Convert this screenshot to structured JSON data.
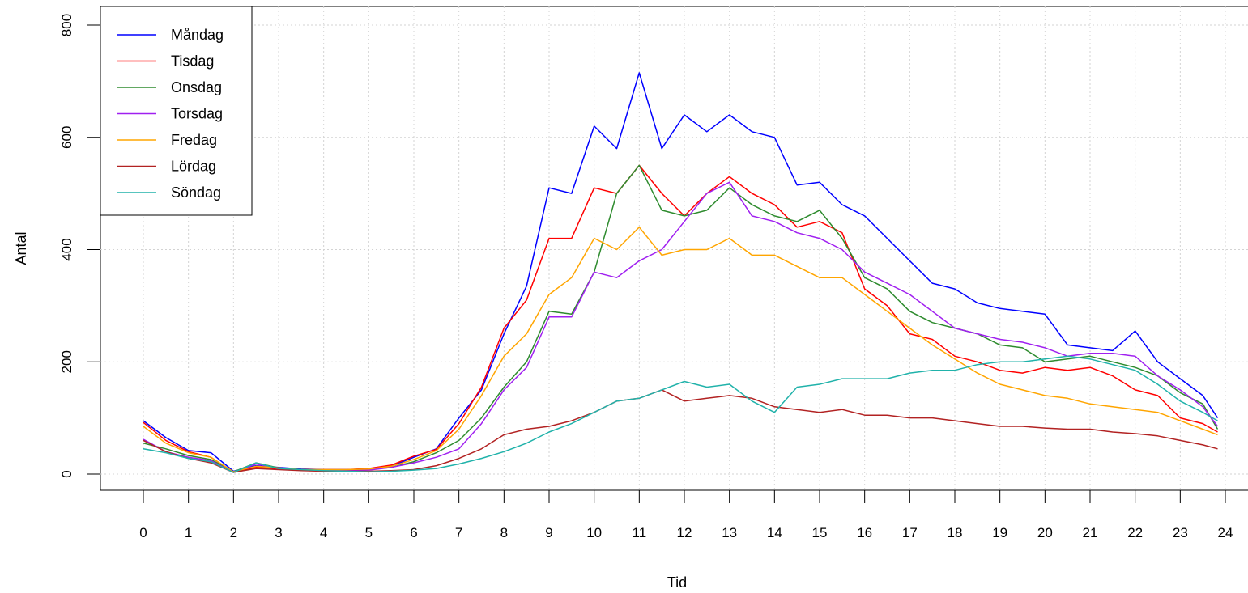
{
  "chart_data": {
    "type": "line",
    "xlabel": "Tid",
    "ylabel": "Antal",
    "xlim": [
      0,
      24
    ],
    "ylim": [
      0,
      800
    ],
    "x_ticks": [
      "0",
      "1",
      "2",
      "3",
      "4",
      "5",
      "6",
      "7",
      "8",
      "9",
      "10",
      "11",
      "12",
      "13",
      "14",
      "15",
      "16",
      "17",
      "18",
      "19",
      "20",
      "21",
      "22",
      "23",
      "24"
    ],
    "y_ticks": [
      "0",
      "200",
      "400",
      "600",
      "800"
    ],
    "grid": true,
    "legend_position": "top-left",
    "x": [
      0,
      0.5,
      1,
      1.5,
      2,
      2.5,
      3,
      3.5,
      4,
      4.5,
      5,
      5.5,
      6,
      6.5,
      7,
      7.5,
      8,
      8.5,
      9,
      9.5,
      10,
      10.5,
      11,
      11.5,
      12,
      12.5,
      13,
      13.5,
      14,
      14.5,
      15,
      15.5,
      16,
      16.5,
      17,
      17.5,
      18,
      18.5,
      19,
      19.5,
      20,
      20.5,
      21,
      21.5,
      22,
      22.5,
      23,
      23.5,
      23.83
    ],
    "series": [
      {
        "name": "Måndag",
        "color": "#0000ff",
        "values": [
          95,
          65,
          42,
          38,
          5,
          15,
          12,
          9,
          8,
          8,
          9,
          14,
          30,
          45,
          100,
          150,
          250,
          335,
          510,
          500,
          620,
          580,
          715,
          580,
          640,
          610,
          640,
          610,
          600,
          515,
          520,
          480,
          460,
          420,
          380,
          340,
          330,
          305,
          295,
          290,
          285,
          230,
          225,
          220,
          255,
          200,
          170,
          140,
          100
        ]
      },
      {
        "name": "Tisdag",
        "color": "#ff0000",
        "values": [
          92,
          60,
          40,
          30,
          3,
          12,
          10,
          8,
          8,
          8,
          10,
          16,
          32,
          44,
          90,
          155,
          260,
          310,
          420,
          420,
          510,
          500,
          550,
          500,
          460,
          500,
          530,
          500,
          480,
          440,
          450,
          430,
          330,
          300,
          250,
          240,
          210,
          200,
          185,
          180,
          190,
          185,
          190,
          175,
          150,
          140,
          100,
          90,
          75
        ]
      },
      {
        "name": "Onsdag",
        "color": "#2e8b2e",
        "values": [
          55,
          45,
          33,
          26,
          4,
          20,
          11,
          8,
          7,
          7,
          8,
          12,
          22,
          38,
          60,
          100,
          155,
          200,
          290,
          285,
          360,
          500,
          550,
          470,
          460,
          470,
          510,
          480,
          460,
          450,
          470,
          420,
          350,
          330,
          290,
          270,
          260,
          250,
          230,
          225,
          200,
          205,
          210,
          200,
          190,
          175,
          145,
          125,
          80
        ]
      },
      {
        "name": "Torsdag",
        "color": "#a020f0",
        "values": [
          62,
          40,
          30,
          24,
          3,
          18,
          10,
          8,
          6,
          6,
          7,
          12,
          20,
          30,
          45,
          90,
          150,
          190,
          280,
          280,
          360,
          350,
          380,
          400,
          450,
          500,
          520,
          460,
          450,
          430,
          420,
          400,
          360,
          340,
          320,
          290,
          260,
          250,
          240,
          235,
          225,
          210,
          215,
          215,
          210,
          175,
          150,
          120,
          85
        ]
      },
      {
        "name": "Fredag",
        "color": "#ffa500",
        "values": [
          85,
          55,
          38,
          30,
          4,
          14,
          11,
          8,
          8,
          8,
          9,
          14,
          26,
          42,
          80,
          140,
          210,
          250,
          320,
          350,
          420,
          400,
          440,
          390,
          400,
          400,
          420,
          390,
          390,
          370,
          350,
          350,
          320,
          290,
          260,
          230,
          205,
          180,
          160,
          150,
          140,
          135,
          125,
          120,
          115,
          110,
          95,
          80,
          70
        ]
      },
      {
        "name": "Lördag",
        "color": "#b22222",
        "values": [
          60,
          40,
          28,
          20,
          3,
          10,
          8,
          6,
          5,
          5,
          5,
          6,
          8,
          15,
          28,
          45,
          70,
          80,
          85,
          95,
          110,
          130,
          135,
          150,
          130,
          135,
          140,
          135,
          120,
          115,
          110,
          115,
          105,
          105,
          100,
          100,
          95,
          90,
          85,
          85,
          82,
          80,
          80,
          75,
          72,
          68,
          60,
          52,
          45
        ]
      },
      {
        "name": "Söndag",
        "color": "#20b2aa",
        "values": [
          45,
          38,
          28,
          22,
          3,
          20,
          10,
          8,
          6,
          5,
          4,
          5,
          7,
          10,
          18,
          28,
          40,
          55,
          75,
          90,
          110,
          130,
          135,
          150,
          165,
          155,
          160,
          130,
          110,
          155,
          160,
          170,
          170,
          170,
          180,
          185,
          185,
          195,
          200,
          200,
          205,
          210,
          205,
          195,
          185,
          160,
          130,
          110,
          95
        ]
      }
    ]
  }
}
